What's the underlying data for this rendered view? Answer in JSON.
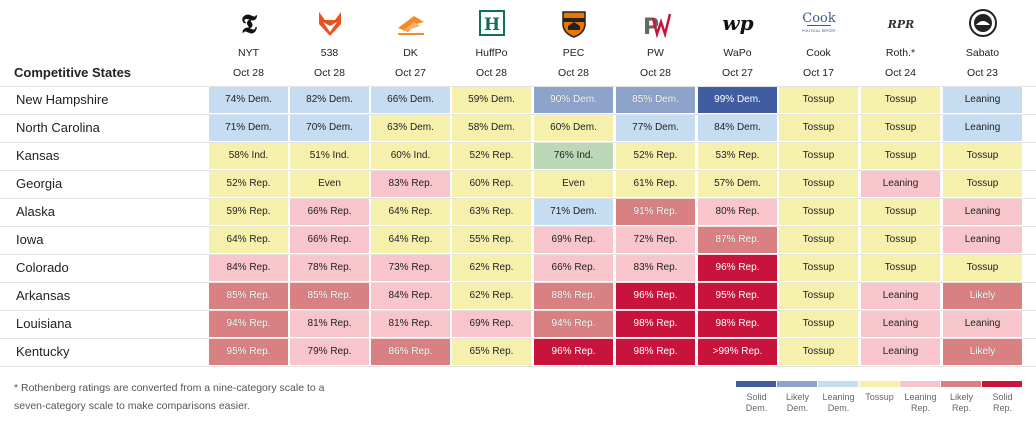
{
  "header": {
    "states_label": "Competitive States"
  },
  "sources": [
    {
      "name": "NYT",
      "date": "Oct 28",
      "logo_text": "𝕿",
      "icon": "nyt-logo-icon"
    },
    {
      "name": "538",
      "date": "Oct 28",
      "logo_text": "",
      "icon": "fox-logo-icon"
    },
    {
      "name": "DK",
      "date": "Oct 27",
      "logo_text": "",
      "icon": "dk-logo-icon"
    },
    {
      "name": "HuffPo",
      "date": "Oct 28",
      "logo_text": "H",
      "icon": "huffpost-logo-icon"
    },
    {
      "name": "PEC",
      "date": "Oct 28",
      "logo_text": "",
      "icon": "princeton-shield-icon"
    },
    {
      "name": "PW",
      "date": "Oct 28",
      "logo_text": "PW",
      "icon": "pw-logo-icon"
    },
    {
      "name": "WaPo",
      "date": "Oct 27",
      "logo_text": "wp",
      "icon": "wapo-logo-icon"
    },
    {
      "name": "Cook",
      "date": "Oct 17",
      "logo_text": "Cook",
      "logo_sub": "POLITICAL REPORT",
      "icon": "cook-logo-icon"
    },
    {
      "name": "Roth.*",
      "date": "Oct 24",
      "logo_text": "RPR",
      "icon": "rpr-logo-icon"
    },
    {
      "name": "Sabato",
      "date": "Oct 23",
      "logo_text": "",
      "icon": "sabato-seal-icon"
    }
  ],
  "colors": {
    "solid_dem": "#3f5da0",
    "likely_dem": "#8ea3cc",
    "leaning_dem": "#c6dcf0",
    "tossup": "#f5f1ac",
    "leaning_rep": "#f8c5cc",
    "likely_rep": "#d98082",
    "solid_rep": "#c8143c",
    "ind": "#bcd8b6"
  },
  "chart_data": {
    "type": "table",
    "columns": [
      "NYT",
      "538",
      "DK",
      "HuffPo",
      "PEC",
      "PW",
      "WaPo",
      "Cook",
      "Roth.*",
      "Sabato"
    ],
    "rows": [
      {
        "state": "New Hampshire",
        "cells": [
          {
            "text": "74% Dem.",
            "cat": "leaning_dem"
          },
          {
            "text": "82% Dem.",
            "cat": "leaning_dem"
          },
          {
            "text": "66% Dem.",
            "cat": "leaning_dem"
          },
          {
            "text": "59% Dem.",
            "cat": "tossup"
          },
          {
            "text": "90% Dem.",
            "cat": "likely_dem"
          },
          {
            "text": "85% Dem.",
            "cat": "likely_dem"
          },
          {
            "text": "99% Dem.",
            "cat": "solid_dem"
          },
          {
            "text": "Tossup",
            "cat": "tossup"
          },
          {
            "text": "Tossup",
            "cat": "tossup"
          },
          {
            "text": "Leaning",
            "cat": "leaning_dem"
          }
        ]
      },
      {
        "state": "North Carolina",
        "cells": [
          {
            "text": "71% Dem.",
            "cat": "leaning_dem"
          },
          {
            "text": "70% Dem.",
            "cat": "leaning_dem"
          },
          {
            "text": "63% Dem.",
            "cat": "tossup"
          },
          {
            "text": "58% Dem.",
            "cat": "tossup"
          },
          {
            "text": "60% Dem.",
            "cat": "tossup"
          },
          {
            "text": "77% Dem.",
            "cat": "leaning_dem"
          },
          {
            "text": "84% Dem.",
            "cat": "leaning_dem"
          },
          {
            "text": "Tossup",
            "cat": "tossup"
          },
          {
            "text": "Tossup",
            "cat": "tossup"
          },
          {
            "text": "Leaning",
            "cat": "leaning_dem"
          }
        ]
      },
      {
        "state": "Kansas",
        "cells": [
          {
            "text": "58% Ind.",
            "cat": "tossup"
          },
          {
            "text": "51% Ind.",
            "cat": "tossup"
          },
          {
            "text": "60% Ind.",
            "cat": "tossup"
          },
          {
            "text": "52% Rep.",
            "cat": "tossup"
          },
          {
            "text": "76% Ind.",
            "cat": "ind"
          },
          {
            "text": "52% Rep.",
            "cat": "tossup"
          },
          {
            "text": "53% Rep.",
            "cat": "tossup"
          },
          {
            "text": "Tossup",
            "cat": "tossup"
          },
          {
            "text": "Tossup",
            "cat": "tossup"
          },
          {
            "text": "Tossup",
            "cat": "tossup"
          }
        ]
      },
      {
        "state": "Georgia",
        "cells": [
          {
            "text": "52% Rep.",
            "cat": "tossup"
          },
          {
            "text": "Even",
            "cat": "tossup"
          },
          {
            "text": "83% Rep.",
            "cat": "leaning_rep"
          },
          {
            "text": "60% Rep.",
            "cat": "tossup"
          },
          {
            "text": "Even",
            "cat": "tossup"
          },
          {
            "text": "61% Rep.",
            "cat": "tossup"
          },
          {
            "text": "57% Dem.",
            "cat": "tossup"
          },
          {
            "text": "Tossup",
            "cat": "tossup"
          },
          {
            "text": "Leaning",
            "cat": "leaning_rep"
          },
          {
            "text": "Tossup",
            "cat": "tossup"
          }
        ]
      },
      {
        "state": "Alaska",
        "cells": [
          {
            "text": "59% Rep.",
            "cat": "tossup"
          },
          {
            "text": "66% Rep.",
            "cat": "leaning_rep"
          },
          {
            "text": "64% Rep.",
            "cat": "tossup"
          },
          {
            "text": "63% Rep.",
            "cat": "tossup"
          },
          {
            "text": "71% Dem.",
            "cat": "leaning_dem"
          },
          {
            "text": "91% Rep.",
            "cat": "likely_rep"
          },
          {
            "text": "80% Rep.",
            "cat": "leaning_rep"
          },
          {
            "text": "Tossup",
            "cat": "tossup"
          },
          {
            "text": "Tossup",
            "cat": "tossup"
          },
          {
            "text": "Leaning",
            "cat": "leaning_rep"
          }
        ]
      },
      {
        "state": "Iowa",
        "cells": [
          {
            "text": "64% Rep.",
            "cat": "tossup"
          },
          {
            "text": "66% Rep.",
            "cat": "leaning_rep"
          },
          {
            "text": "64% Rep.",
            "cat": "tossup"
          },
          {
            "text": "55% Rep.",
            "cat": "tossup"
          },
          {
            "text": "69% Rep.",
            "cat": "leaning_rep"
          },
          {
            "text": "72% Rep.",
            "cat": "leaning_rep"
          },
          {
            "text": "87% Rep.",
            "cat": "likely_rep"
          },
          {
            "text": "Tossup",
            "cat": "tossup"
          },
          {
            "text": "Tossup",
            "cat": "tossup"
          },
          {
            "text": "Leaning",
            "cat": "leaning_rep"
          }
        ]
      },
      {
        "state": "Colorado",
        "cells": [
          {
            "text": "84% Rep.",
            "cat": "leaning_rep"
          },
          {
            "text": "78% Rep.",
            "cat": "leaning_rep"
          },
          {
            "text": "73% Rep.",
            "cat": "leaning_rep"
          },
          {
            "text": "62% Rep.",
            "cat": "tossup"
          },
          {
            "text": "66% Rep.",
            "cat": "leaning_rep"
          },
          {
            "text": "83% Rep.",
            "cat": "leaning_rep"
          },
          {
            "text": "96% Rep.",
            "cat": "solid_rep"
          },
          {
            "text": "Tossup",
            "cat": "tossup"
          },
          {
            "text": "Tossup",
            "cat": "tossup"
          },
          {
            "text": "Tossup",
            "cat": "tossup"
          }
        ]
      },
      {
        "state": "Arkansas",
        "cells": [
          {
            "text": "85% Rep.",
            "cat": "likely_rep"
          },
          {
            "text": "85% Rep.",
            "cat": "likely_rep"
          },
          {
            "text": "84% Rep.",
            "cat": "leaning_rep"
          },
          {
            "text": "62% Rep.",
            "cat": "tossup"
          },
          {
            "text": "88% Rep.",
            "cat": "likely_rep"
          },
          {
            "text": "96% Rep.",
            "cat": "solid_rep"
          },
          {
            "text": "95% Rep.",
            "cat": "solid_rep"
          },
          {
            "text": "Tossup",
            "cat": "tossup"
          },
          {
            "text": "Leaning",
            "cat": "leaning_rep"
          },
          {
            "text": "Likely",
            "cat": "likely_rep"
          }
        ]
      },
      {
        "state": "Louisiana",
        "cells": [
          {
            "text": "94% Rep.",
            "cat": "likely_rep"
          },
          {
            "text": "81% Rep.",
            "cat": "leaning_rep"
          },
          {
            "text": "81% Rep.",
            "cat": "leaning_rep"
          },
          {
            "text": "69% Rep.",
            "cat": "leaning_rep"
          },
          {
            "text": "94% Rep.",
            "cat": "likely_rep"
          },
          {
            "text": "98% Rep.",
            "cat": "solid_rep"
          },
          {
            "text": "98% Rep.",
            "cat": "solid_rep"
          },
          {
            "text": "Tossup",
            "cat": "tossup"
          },
          {
            "text": "Leaning",
            "cat": "leaning_rep"
          },
          {
            "text": "Leaning",
            "cat": "leaning_rep"
          }
        ]
      },
      {
        "state": "Kentucky",
        "cells": [
          {
            "text": "95% Rep.",
            "cat": "likely_rep"
          },
          {
            "text": "79% Rep.",
            "cat": "leaning_rep"
          },
          {
            "text": "86% Rep.",
            "cat": "likely_rep"
          },
          {
            "text": "65% Rep.",
            "cat": "tossup"
          },
          {
            "text": "96% Rep.",
            "cat": "solid_rep"
          },
          {
            "text": "98% Rep.",
            "cat": "solid_rep"
          },
          {
            "text": ">99% Rep.",
            "cat": "solid_rep"
          },
          {
            "text": "Tossup",
            "cat": "tossup"
          },
          {
            "text": "Leaning",
            "cat": "leaning_rep"
          },
          {
            "text": "Likely",
            "cat": "likely_rep"
          }
        ]
      }
    ]
  },
  "footnote": "* Rothenberg ratings are converted from a nine-category scale to a seven-category scale to make comparisons easier.",
  "legend": [
    {
      "label": "Solid Dem.",
      "cat": "solid_dem"
    },
    {
      "label": "Likely Dem.",
      "cat": "likely_dem"
    },
    {
      "label": "Leaning Dem.",
      "cat": "leaning_dem"
    },
    {
      "label": "Tossup",
      "cat": "tossup"
    },
    {
      "label": "Leaning Rep.",
      "cat": "leaning_rep"
    },
    {
      "label": "Likely Rep.",
      "cat": "likely_rep"
    },
    {
      "label": "Solid Rep.",
      "cat": "solid_rep"
    }
  ]
}
